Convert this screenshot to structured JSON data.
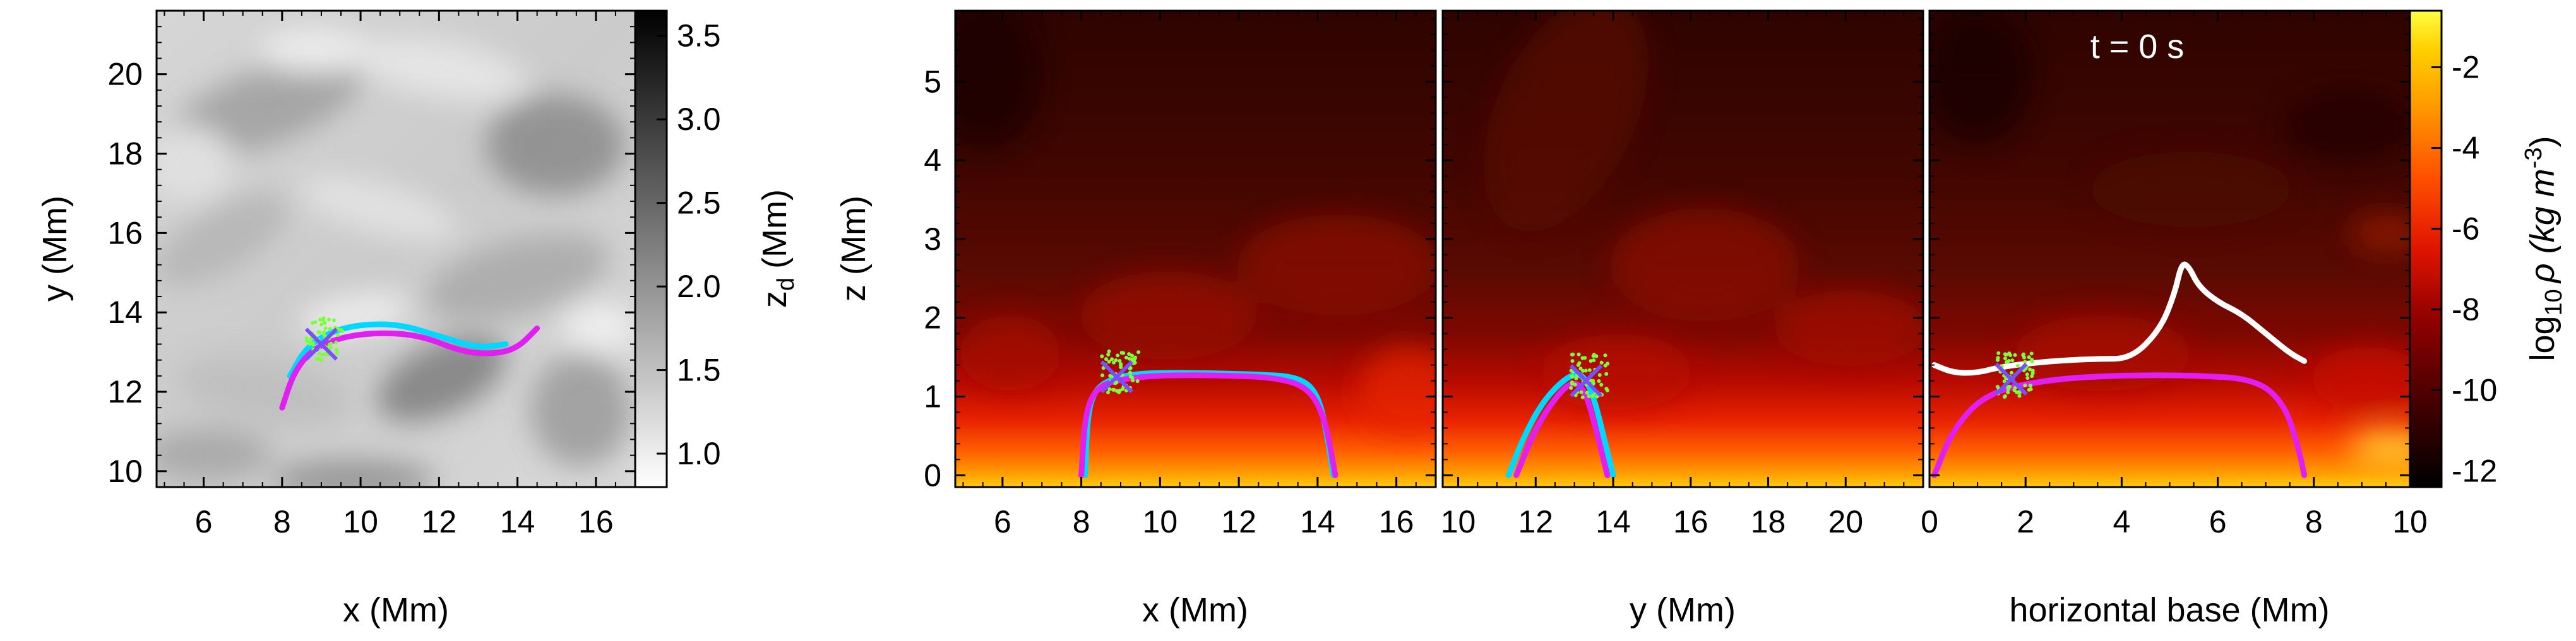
{
  "chart_data": [
    {
      "type": "heatmap",
      "panel": "top-view",
      "xlabel": "x (Mm)",
      "ylabel": "y (Mm)",
      "xlim": [
        4.8,
        17.0
      ],
      "ylim": [
        9.6,
        21.6
      ],
      "xticks": [
        6,
        8,
        10,
        12,
        14,
        16
      ],
      "yticks": [
        10,
        12,
        14,
        16,
        18,
        20
      ],
      "colorbar": {
        "label": "z_d (Mm)",
        "range": [
          0.8,
          3.65
        ],
        "ticks": [
          1.0,
          1.5,
          2.0,
          2.5,
          3.0,
          3.5
        ],
        "colormap": "grayscale"
      },
      "series": [
        {
          "color": "#00d8ff",
          "points": [
            [
              8.2,
              12.4
            ],
            [
              8.6,
              13.1
            ],
            [
              9.2,
              13.5
            ],
            [
              10.0,
              13.7
            ],
            [
              11.0,
              13.7
            ],
            [
              12.0,
              13.4
            ],
            [
              13.0,
              13.1
            ],
            [
              13.7,
              13.2
            ]
          ]
        },
        {
          "color": "#e020f0",
          "points": [
            [
              8.0,
              11.6
            ],
            [
              8.3,
              12.5
            ],
            [
              8.8,
              13.1
            ],
            [
              9.6,
              13.4
            ],
            [
              10.6,
              13.5
            ],
            [
              11.6,
              13.4
            ],
            [
              12.6,
              13.0
            ],
            [
              13.4,
              12.95
            ],
            [
              14.0,
              13.1
            ],
            [
              14.5,
              13.6
            ]
          ]
        }
      ],
      "markers": [
        {
          "type": "x",
          "x": 9.0,
          "y": 13.2
        }
      ]
    },
    {
      "type": "heatmap",
      "panel": "side-view-x",
      "xlabel": "x (Mm)",
      "ylabel": "z (Mm)",
      "xlim": [
        4.8,
        17.0
      ],
      "ylim": [
        -0.15,
        5.9
      ],
      "xticks": [
        6,
        8,
        10,
        12,
        14,
        16
      ],
      "yticks": [
        0,
        1,
        2,
        3,
        4,
        5
      ],
      "series": [
        {
          "color": "#00d8ff",
          "points": [
            [
              8.1,
              0.0
            ],
            [
              8.15,
              0.7
            ],
            [
              8.3,
              1.05
            ],
            [
              8.7,
              1.22
            ],
            [
              9.5,
              1.3
            ],
            [
              11.0,
              1.3
            ],
            [
              12.5,
              1.28
            ],
            [
              13.5,
              1.25
            ],
            [
              14.0,
              1.05
            ],
            [
              14.25,
              0.5
            ],
            [
              14.4,
              0.0
            ]
          ]
        },
        {
          "color": "#e020f0",
          "points": [
            [
              8.0,
              0.0
            ],
            [
              8.1,
              0.8
            ],
            [
              8.4,
              1.12
            ],
            [
              9.0,
              1.22
            ],
            [
              10.0,
              1.27
            ],
            [
              11.5,
              1.27
            ],
            [
              13.0,
              1.24
            ],
            [
              13.8,
              1.1
            ],
            [
              14.2,
              0.7
            ],
            [
              14.45,
              0.0
            ]
          ]
        }
      ],
      "markers": [
        {
          "type": "x",
          "x": 8.9,
          "y": 1.25
        }
      ]
    },
    {
      "type": "heatmap",
      "panel": "side-view-y",
      "xlabel": "y (Mm)",
      "xlim": [
        9.6,
        22.0
      ],
      "ylim": [
        -0.15,
        5.9
      ],
      "xticks": [
        10,
        12,
        14,
        16,
        18,
        20
      ],
      "yticks": [
        0,
        1,
        2,
        3,
        4,
        5
      ],
      "series": [
        {
          "color": "#00d8ff",
          "points": [
            [
              11.3,
              0.0
            ],
            [
              11.7,
              0.5
            ],
            [
              12.2,
              0.95
            ],
            [
              12.8,
              1.25
            ],
            [
              13.2,
              1.3
            ],
            [
              13.5,
              1.0
            ],
            [
              13.8,
              0.4
            ],
            [
              14.0,
              0.0
            ]
          ]
        },
        {
          "color": "#e020f0",
          "points": [
            [
              11.5,
              0.0
            ],
            [
              12.0,
              0.6
            ],
            [
              12.6,
              1.05
            ],
            [
              13.0,
              1.2
            ],
            [
              13.3,
              1.05
            ],
            [
              13.6,
              0.5
            ],
            [
              13.85,
              0.0
            ]
          ]
        }
      ],
      "markers": [
        {
          "type": "x",
          "x": 13.3,
          "y": 1.2
        }
      ]
    },
    {
      "type": "heatmap",
      "panel": "side-view-loop",
      "xlabel": "horizontal base (Mm)",
      "xlim": [
        0,
        10
      ],
      "ylim": [
        -0.15,
        5.9
      ],
      "xticks": [
        0,
        2,
        4,
        6,
        8,
        10
      ],
      "yticks": [
        0,
        1,
        2,
        3,
        4,
        5
      ],
      "annotation": "t = 0 s",
      "colorbar": {
        "label": "log10 ρ (kg m^-3)",
        "range": [
          -12.4,
          -0.6
        ],
        "ticks": [
          -12,
          -10,
          -8,
          -6,
          -4,
          -2
        ],
        "colormap": "hot"
      },
      "series": [
        {
          "color": "#e020f0",
          "points": [
            [
              0.1,
              0.0
            ],
            [
              0.5,
              0.6
            ],
            [
              1.2,
              1.05
            ],
            [
              2.5,
              1.22
            ],
            [
              4.0,
              1.27
            ],
            [
              5.5,
              1.27
            ],
            [
              6.8,
              1.22
            ],
            [
              7.4,
              0.9
            ],
            [
              7.7,
              0.3
            ],
            [
              7.8,
              0.0
            ]
          ]
        },
        {
          "color": "#ffffff",
          "points": [
            [
              0.1,
              1.4
            ],
            [
              0.5,
              1.3
            ],
            [
              1.0,
              1.3
            ],
            [
              1.5,
              1.38
            ],
            [
              2.5,
              1.45
            ],
            [
              3.5,
              1.48
            ],
            [
              4.2,
              1.48
            ],
            [
              4.8,
              1.85
            ],
            [
              5.1,
              2.3
            ],
            [
              5.25,
              2.7
            ],
            [
              5.4,
              2.65
            ],
            [
              5.6,
              2.4
            ],
            [
              6.0,
              2.2
            ],
            [
              6.5,
              2.05
            ],
            [
              7.0,
              1.8
            ],
            [
              7.5,
              1.55
            ],
            [
              7.8,
              1.45
            ]
          ]
        }
      ],
      "markers": [
        {
          "type": "x",
          "x": 1.7,
          "y": 1.22
        }
      ]
    }
  ],
  "labels": {
    "p1_xlabel": "x (Mm)",
    "p1_ylabel": "y (Mm)",
    "cb1_label": "z",
    "cb1_sub": "d",
    "cb1_unit": "(Mm)",
    "p2_ylabel": "z (Mm)",
    "p2_xlabel": "x (Mm)",
    "p3_xlabel": "y (Mm)",
    "p4_xlabel": "horizontal base (Mm)",
    "time": "t = 0 s",
    "cb2_label_pre": "log",
    "cb2_sub": "10",
    "cb2_rho": "ρ (kg m",
    "cb2_sup": "-3",
    "cb2_close": ")"
  }
}
